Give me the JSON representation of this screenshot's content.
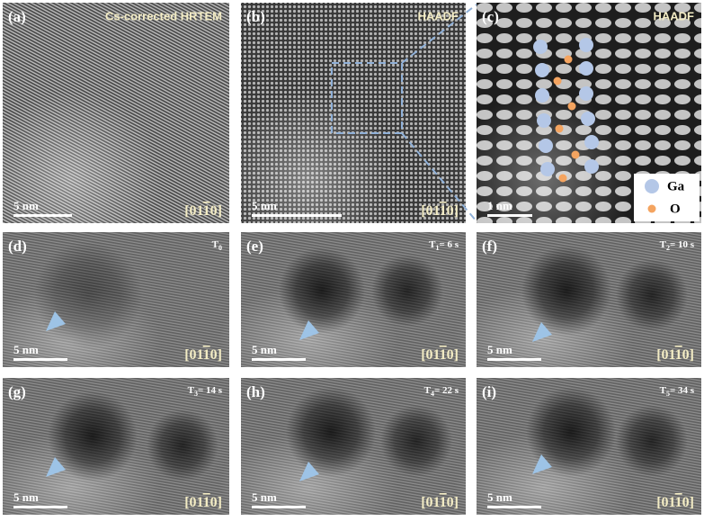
{
  "panels": [
    {
      "label": "(a)",
      "title": "Cs-corrected HRTEM",
      "scale_bar": "5 nm",
      "zone_axis": {
        "before": "[01",
        "bar": "1",
        "after": "0]"
      }
    },
    {
      "label": "(b)",
      "title": "HAADF",
      "scale_bar": "5 nm",
      "zone_axis": {
        "before": "[01",
        "bar": "1",
        "after": "0]"
      }
    },
    {
      "label": "(c)",
      "title": "HAADF",
      "scale_bar": "1 nm",
      "legend": [
        "Ga",
        "O"
      ]
    },
    {
      "label": "(d)",
      "time": {
        "symbol": "T",
        "index": "0"
      },
      "scale_bar": "5 nm",
      "zone_axis": {
        "before": "[01",
        "bar": "1",
        "after": "0]"
      }
    },
    {
      "label": "(e)",
      "time": {
        "symbol": "T",
        "index": "1",
        "value": "= 6 s"
      },
      "scale_bar": "5 nm",
      "zone_axis": {
        "before": "[01",
        "bar": "1",
        "after": "0]"
      }
    },
    {
      "label": "(f)",
      "time": {
        "symbol": "T",
        "index": "2",
        "value": "= 10 s"
      },
      "scale_bar": "5 nm",
      "zone_axis": {
        "before": "[01",
        "bar": "1",
        "after": "0]"
      }
    },
    {
      "label": "(g)",
      "time": {
        "symbol": "T",
        "index": "3",
        "value": "= 14 s"
      },
      "scale_bar": "5 nm",
      "zone_axis": {
        "before": "[01",
        "bar": "1",
        "after": "0]"
      }
    },
    {
      "label": "(h)",
      "time": {
        "symbol": "T",
        "index": "4",
        "value": "= 22 s"
      },
      "scale_bar": "5 nm",
      "zone_axis": {
        "before": "[01",
        "bar": "1",
        "after": "0]"
      }
    },
    {
      "label": "(i)",
      "time": {
        "symbol": "T",
        "index": "5",
        "value": "= 34 s"
      },
      "scale_bar": "5 nm",
      "zone_axis": {
        "before": "[01",
        "bar": "1",
        "after": "0]"
      }
    }
  ]
}
